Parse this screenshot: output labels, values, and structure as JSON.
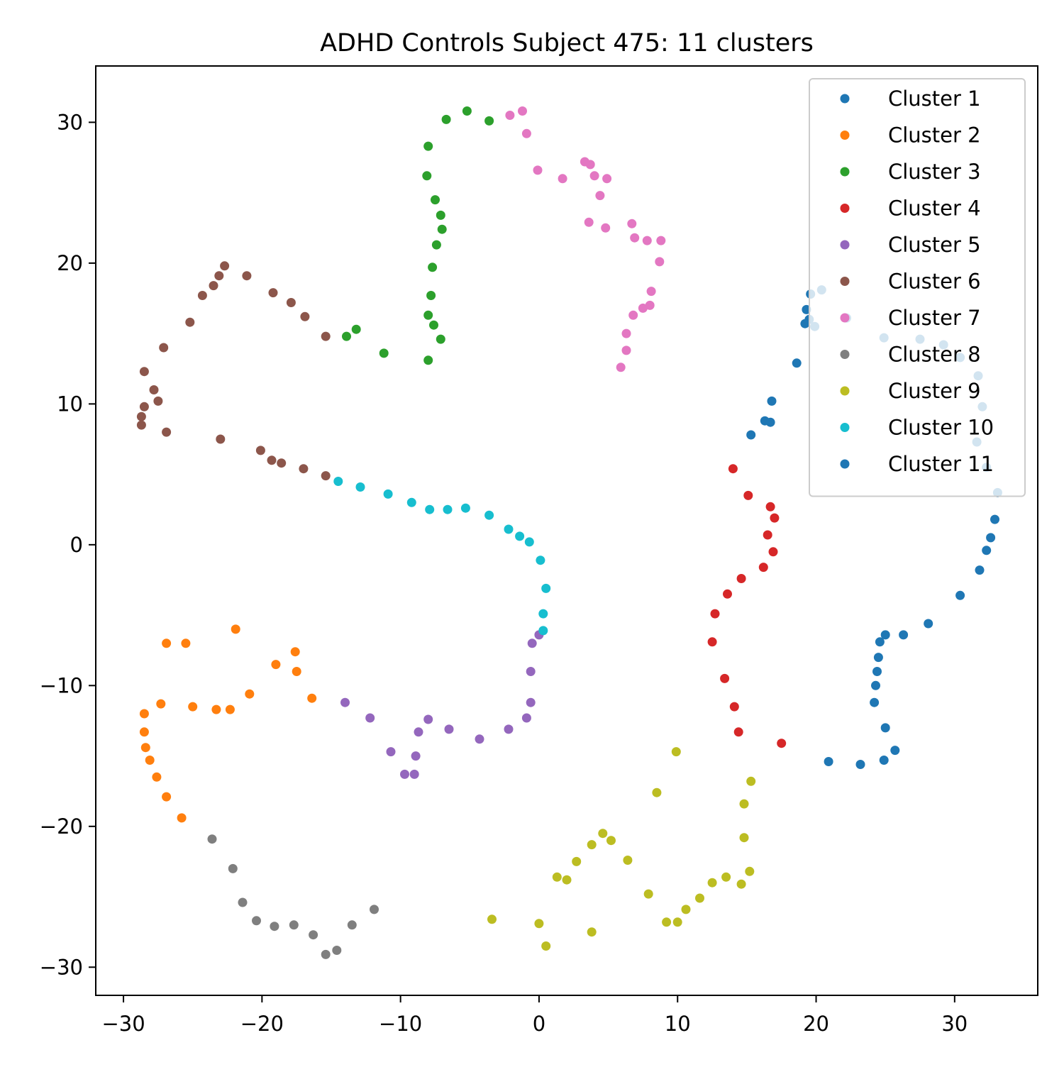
{
  "chart_data": {
    "type": "scatter",
    "title": "ADHD Controls Subject 475: 11 clusters",
    "xlabel": "",
    "ylabel": "",
    "xlim": [
      -32,
      36
    ],
    "ylim": [
      -32,
      34
    ],
    "xticks": [
      -30,
      -20,
      -10,
      0,
      10,
      20,
      30
    ],
    "yticks": [
      -30,
      -20,
      -10,
      0,
      10,
      20,
      30
    ],
    "grid": false,
    "legend_position": "top-right",
    "series": [
      {
        "name": "Cluster 1",
        "color": "#1f77b4",
        "points": [
          [
            19.6,
            17.8
          ],
          [
            20.4,
            18.1
          ],
          [
            19.3,
            16.7
          ],
          [
            19.5,
            16.0
          ],
          [
            19.2,
            15.7
          ],
          [
            19.9,
            15.5
          ],
          [
            22.2,
            16.1
          ],
          [
            18.6,
            12.9
          ],
          [
            16.8,
            10.2
          ],
          [
            16.3,
            8.8
          ],
          [
            16.7,
            8.7
          ],
          [
            15.3,
            7.8
          ],
          [
            24.9,
            14.7
          ],
          [
            27.5,
            14.6
          ],
          [
            29.2,
            14.2
          ],
          [
            30.4,
            13.3
          ],
          [
            31.7,
            12.0
          ],
          [
            32.0,
            9.8
          ],
          [
            31.6,
            7.3
          ],
          [
            32.3,
            5.5
          ],
          [
            33.1,
            3.7
          ],
          [
            32.9,
            1.8
          ],
          [
            32.6,
            0.5
          ],
          [
            32.3,
            -0.4
          ],
          [
            31.8,
            -1.8
          ],
          [
            30.4,
            -3.6
          ],
          [
            28.1,
            -5.6
          ]
        ]
      },
      {
        "name": "Cluster 2",
        "color": "#ff7f0e",
        "points": [
          [
            -26.9,
            -7.0
          ],
          [
            -25.5,
            -7.0
          ],
          [
            -21.9,
            -6.0
          ],
          [
            -17.6,
            -7.6
          ],
          [
            -19.0,
            -8.5
          ],
          [
            -17.5,
            -9.0
          ],
          [
            -20.9,
            -10.6
          ],
          [
            -16.4,
            -10.9
          ],
          [
            -27.3,
            -11.3
          ],
          [
            -25.0,
            -11.5
          ],
          [
            -23.3,
            -11.7
          ],
          [
            -22.3,
            -11.7
          ],
          [
            -28.5,
            -12.0
          ],
          [
            -28.5,
            -13.3
          ],
          [
            -28.4,
            -14.4
          ],
          [
            -28.1,
            -15.3
          ],
          [
            -27.6,
            -16.5
          ],
          [
            -26.9,
            -17.9
          ],
          [
            -25.8,
            -19.4
          ]
        ]
      },
      {
        "name": "Cluster 3",
        "color": "#2ca02c",
        "points": [
          [
            -5.2,
            30.8
          ],
          [
            -6.7,
            30.2
          ],
          [
            -3.6,
            30.1
          ],
          [
            -8.0,
            28.3
          ],
          [
            -8.1,
            26.2
          ],
          [
            -7.5,
            24.5
          ],
          [
            -7.1,
            23.4
          ],
          [
            -7.0,
            22.4
          ],
          [
            -7.4,
            21.3
          ],
          [
            -7.7,
            19.7
          ],
          [
            -7.8,
            17.7
          ],
          [
            -8.0,
            16.3
          ],
          [
            -7.6,
            15.6
          ],
          [
            -7.1,
            14.6
          ],
          [
            -8.0,
            13.1
          ],
          [
            -13.2,
            15.3
          ],
          [
            -13.9,
            14.8
          ],
          [
            -11.2,
            13.6
          ]
        ]
      },
      {
        "name": "Cluster 4",
        "color": "#d62728",
        "points": [
          [
            14.0,
            5.4
          ],
          [
            15.1,
            3.5
          ],
          [
            16.7,
            2.7
          ],
          [
            17.0,
            1.9
          ],
          [
            16.5,
            0.7
          ],
          [
            16.9,
            -0.5
          ],
          [
            16.2,
            -1.6
          ],
          [
            14.6,
            -2.4
          ],
          [
            13.6,
            -3.5
          ],
          [
            12.7,
            -4.9
          ],
          [
            12.5,
            -6.9
          ],
          [
            13.4,
            -9.5
          ],
          [
            14.1,
            -11.5
          ],
          [
            14.4,
            -13.3
          ],
          [
            17.5,
            -14.1
          ]
        ]
      },
      {
        "name": "Cluster 5",
        "color": "#9467bd",
        "points": [
          [
            -0.5,
            -7.0
          ],
          [
            0.0,
            -6.4
          ],
          [
            -0.6,
            -9.0
          ],
          [
            -0.6,
            -11.2
          ],
          [
            -0.9,
            -12.3
          ],
          [
            -2.2,
            -13.1
          ],
          [
            -4.3,
            -13.8
          ],
          [
            -6.5,
            -13.1
          ],
          [
            -8.0,
            -12.4
          ],
          [
            -8.7,
            -13.3
          ],
          [
            -12.2,
            -12.3
          ],
          [
            -14.0,
            -11.2
          ],
          [
            -10.7,
            -14.7
          ],
          [
            -8.9,
            -15.0
          ],
          [
            -9.7,
            -16.3
          ],
          [
            -9.0,
            -16.3
          ]
        ]
      },
      {
        "name": "Cluster 6",
        "color": "#8c564b",
        "points": [
          [
            -22.7,
            19.8
          ],
          [
            -23.1,
            19.1
          ],
          [
            -21.1,
            19.1
          ],
          [
            -23.5,
            18.4
          ],
          [
            -24.3,
            17.7
          ],
          [
            -19.2,
            17.9
          ],
          [
            -17.9,
            17.2
          ],
          [
            -16.9,
            16.2
          ],
          [
            -25.2,
            15.8
          ],
          [
            -15.4,
            14.8
          ],
          [
            -27.1,
            14.0
          ],
          [
            -28.5,
            12.3
          ],
          [
            -27.8,
            11.0
          ],
          [
            -27.5,
            10.2
          ],
          [
            -28.5,
            9.8
          ],
          [
            -28.7,
            9.1
          ],
          [
            -28.7,
            8.5
          ],
          [
            -26.9,
            8.0
          ],
          [
            -23.0,
            7.5
          ],
          [
            -20.1,
            6.7
          ],
          [
            -19.3,
            6.0
          ],
          [
            -18.6,
            5.8
          ],
          [
            -17.0,
            5.4
          ],
          [
            -15.4,
            4.9
          ]
        ]
      },
      {
        "name": "Cluster 7",
        "color": "#e377c2",
        "points": [
          [
            -1.2,
            30.8
          ],
          [
            -2.1,
            30.5
          ],
          [
            -0.9,
            29.2
          ],
          [
            -0.1,
            26.6
          ],
          [
            1.7,
            26.0
          ],
          [
            3.3,
            27.2
          ],
          [
            3.7,
            27.0
          ],
          [
            4.0,
            26.2
          ],
          [
            4.9,
            26.0
          ],
          [
            4.4,
            24.8
          ],
          [
            3.6,
            22.9
          ],
          [
            4.8,
            22.5
          ],
          [
            6.7,
            22.8
          ],
          [
            6.9,
            21.8
          ],
          [
            7.8,
            21.6
          ],
          [
            8.8,
            21.6
          ],
          [
            8.7,
            20.1
          ],
          [
            8.1,
            18.0
          ],
          [
            8.0,
            17.0
          ],
          [
            7.5,
            16.8
          ],
          [
            6.8,
            16.3
          ],
          [
            6.3,
            15.0
          ],
          [
            6.3,
            13.8
          ],
          [
            5.9,
            12.6
          ]
        ]
      },
      {
        "name": "Cluster 8",
        "color": "#7f7f7f",
        "points": [
          [
            -23.6,
            -20.9
          ],
          [
            -22.1,
            -23.0
          ],
          [
            -21.4,
            -25.4
          ],
          [
            -20.4,
            -26.7
          ],
          [
            -19.1,
            -27.1
          ],
          [
            -17.7,
            -27.0
          ],
          [
            -16.3,
            -27.7
          ],
          [
            -15.4,
            -29.1
          ],
          [
            -14.6,
            -28.8
          ],
          [
            -13.5,
            -27.0
          ],
          [
            -11.9,
            -25.9
          ]
        ]
      },
      {
        "name": "Cluster 9",
        "color": "#bcbd22",
        "points": [
          [
            9.9,
            -14.7
          ],
          [
            15.3,
            -16.8
          ],
          [
            8.5,
            -17.6
          ],
          [
            14.8,
            -18.4
          ],
          [
            14.8,
            -20.8
          ],
          [
            4.6,
            -20.5
          ],
          [
            5.2,
            -21.0
          ],
          [
            3.8,
            -21.3
          ],
          [
            6.4,
            -22.4
          ],
          [
            2.7,
            -22.5
          ],
          [
            15.2,
            -23.2
          ],
          [
            1.3,
            -23.6
          ],
          [
            2.0,
            -23.8
          ],
          [
            13.5,
            -23.6
          ],
          [
            12.5,
            -24.0
          ],
          [
            14.6,
            -24.1
          ],
          [
            7.9,
            -24.8
          ],
          [
            11.6,
            -25.1
          ],
          [
            10.6,
            -25.9
          ],
          [
            -3.4,
            -26.6
          ],
          [
            0.0,
            -26.9
          ],
          [
            9.2,
            -26.8
          ],
          [
            10.0,
            -26.8
          ],
          [
            3.8,
            -27.5
          ],
          [
            0.5,
            -28.5
          ]
        ]
      },
      {
        "name": "Cluster 10",
        "color": "#17becf",
        "points": [
          [
            -14.5,
            4.5
          ],
          [
            -12.9,
            4.1
          ],
          [
            -10.9,
            3.6
          ],
          [
            -9.2,
            3.0
          ],
          [
            -7.9,
            2.5
          ],
          [
            -6.6,
            2.5
          ],
          [
            -5.3,
            2.6
          ],
          [
            -3.6,
            2.1
          ],
          [
            -2.2,
            1.1
          ],
          [
            -1.4,
            0.6
          ],
          [
            -0.7,
            0.2
          ],
          [
            0.1,
            -1.1
          ],
          [
            0.5,
            -3.1
          ],
          [
            0.3,
            -4.9
          ],
          [
            0.3,
            -6.1
          ]
        ]
      },
      {
        "name": "Cluster 11",
        "color": "#1f77b4",
        "points": [
          [
            25.0,
            -6.4
          ],
          [
            26.3,
            -6.4
          ],
          [
            24.6,
            -6.9
          ],
          [
            24.5,
            -8.0
          ],
          [
            24.4,
            -9.0
          ],
          [
            24.3,
            -10.0
          ],
          [
            24.2,
            -11.2
          ],
          [
            25.0,
            -13.0
          ],
          [
            25.7,
            -14.6
          ],
          [
            20.9,
            -15.4
          ],
          [
            23.2,
            -15.6
          ],
          [
            24.9,
            -15.3
          ]
        ]
      }
    ]
  }
}
